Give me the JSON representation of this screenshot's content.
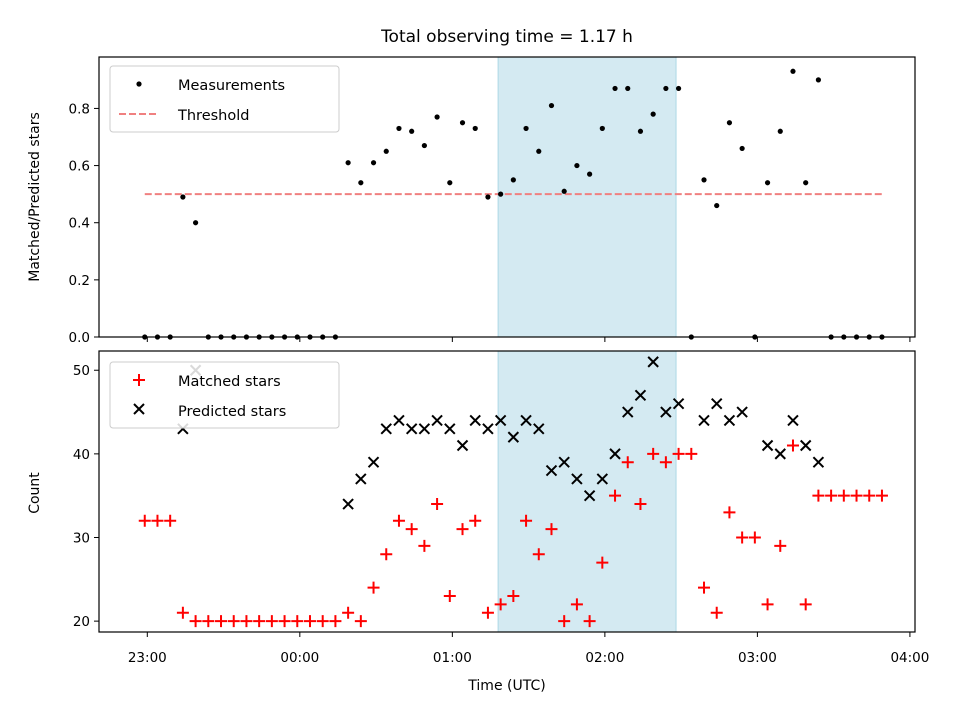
{
  "title": "Total observing time = 1.17 h",
  "xlabel": "Time (UTC)",
  "x_ticks": [
    "23:00",
    "00:00",
    "01:00",
    "02:00",
    "03:00",
    "04:00"
  ],
  "colors": {
    "measurements": "#000000",
    "threshold": "#f08080",
    "matched": "#ff0000",
    "predicted": "#000000",
    "span": "#add8e6"
  },
  "chart_data": [
    {
      "type": "scatter",
      "panel": "top",
      "ylabel": "Matched/Predicted stars",
      "ylim": [
        0,
        0.98
      ],
      "y_ticks": [
        "0.0",
        "0.2",
        "0.4",
        "0.6",
        "0.8"
      ],
      "xlim": [
        "22:41",
        "04:02"
      ],
      "shaded_interval": [
        "01:18",
        "02:28"
      ],
      "legend": {
        "position": "upper left",
        "entries": [
          "Measurements",
          "Threshold"
        ]
      },
      "threshold": {
        "name": "Threshold",
        "y": 0.5,
        "x_range": [
          "22:59",
          "03:49"
        ]
      },
      "series": [
        {
          "name": "Measurements",
          "marker": "dot",
          "x": [
            "22:59",
            "23:04",
            "23:09",
            "23:14",
            "23:19",
            "23:24",
            "23:29",
            "23:34",
            "23:39",
            "23:44",
            "23:49",
            "23:54",
            "23:59",
            "00:04",
            "00:09",
            "00:14",
            "00:19",
            "00:24",
            "00:29",
            "00:34",
            "00:39",
            "00:44",
            "00:49",
            "00:54",
            "00:59",
            "01:04",
            "01:09",
            "01:14",
            "01:19",
            "01:24",
            "01:29",
            "01:34",
            "01:39",
            "01:44",
            "01:49",
            "01:54",
            "01:59",
            "02:04",
            "02:09",
            "02:14",
            "02:19",
            "02:24",
            "02:29",
            "02:34",
            "02:39",
            "02:44",
            "02:49",
            "02:54",
            "02:59",
            "03:04",
            "03:09",
            "03:14",
            "03:19",
            "03:24",
            "03:29",
            "03:34",
            "03:39",
            "03:44",
            "03:49"
          ],
          "y": [
            0,
            0,
            0,
            0.49,
            0.4,
            0,
            0,
            0,
            0,
            0,
            0,
            0,
            0,
            0,
            0,
            0,
            0.61,
            0.54,
            0.61,
            0.65,
            0.73,
            0.72,
            0.67,
            0.77,
            0.54,
            0.75,
            0.73,
            0.49,
            0.5,
            0.55,
            0.73,
            0.65,
            0.81,
            0.51,
            0.6,
            0.57,
            0.73,
            0.87,
            0.87,
            0.72,
            0.78,
            0.87,
            0.87,
            0,
            0.55,
            0.46,
            0.75,
            0.66,
            0,
            0.54,
            0.72,
            0.93,
            0.54,
            0.9,
            0,
            0,
            0,
            0,
            0
          ]
        }
      ]
    },
    {
      "type": "scatter",
      "panel": "bottom",
      "ylabel": "Count",
      "ylim": [
        18.7,
        52.3
      ],
      "y_ticks": [
        "20",
        "30",
        "40",
        "50"
      ],
      "xlim": [
        "22:41",
        "04:02"
      ],
      "shaded_interval": [
        "01:18",
        "02:28"
      ],
      "legend": {
        "position": "upper left",
        "entries": [
          "Matched stars",
          "Predicted stars"
        ]
      },
      "series": [
        {
          "name": "Matched stars",
          "marker": "plus",
          "x": [
            "22:59",
            "23:04",
            "23:09",
            "23:14",
            "23:19",
            "23:24",
            "23:29",
            "23:34",
            "23:39",
            "23:44",
            "23:49",
            "23:54",
            "23:59",
            "00:04",
            "00:09",
            "00:14",
            "00:19",
            "00:24",
            "00:29",
            "00:34",
            "00:39",
            "00:44",
            "00:49",
            "00:54",
            "00:59",
            "01:04",
            "01:09",
            "01:14",
            "01:19",
            "01:24",
            "01:29",
            "01:34",
            "01:39",
            "01:44",
            "01:49",
            "01:54",
            "01:59",
            "02:04",
            "02:09",
            "02:14",
            "02:19",
            "02:24",
            "02:29",
            "02:34",
            "02:39",
            "02:44",
            "02:49",
            "02:54",
            "02:59",
            "03:04",
            "03:09",
            "03:14",
            "03:19",
            "03:24",
            "03:29",
            "03:34",
            "03:39",
            "03:44",
            "03:49"
          ],
          "y": [
            32,
            32,
            32,
            21,
            20,
            20,
            20,
            20,
            20,
            20,
            20,
            20,
            20,
            20,
            20,
            20,
            21,
            20,
            24,
            28,
            32,
            31,
            29,
            34,
            23,
            31,
            32,
            21,
            22,
            23,
            32,
            28,
            31,
            20,
            22,
            20,
            27,
            35,
            39,
            34,
            40,
            39,
            40,
            40,
            24,
            21,
            33,
            30,
            30,
            22,
            29,
            41,
            22,
            35,
            35,
            35,
            35,
            35,
            35
          ]
        },
        {
          "name": "Predicted stars",
          "marker": "x",
          "x": [
            "23:14",
            "23:19",
            "00:19",
            "00:24",
            "00:29",
            "00:34",
            "00:39",
            "00:44",
            "00:49",
            "00:54",
            "00:59",
            "01:04",
            "01:09",
            "01:14",
            "01:19",
            "01:24",
            "01:29",
            "01:34",
            "01:39",
            "01:44",
            "01:49",
            "01:54",
            "01:59",
            "02:04",
            "02:09",
            "02:14",
            "02:19",
            "02:24",
            "02:29",
            "02:39",
            "02:44",
            "02:49",
            "02:54",
            "03:04",
            "03:09",
            "03:14",
            "03:19",
            "03:24"
          ],
          "y": [
            43,
            50,
            34,
            37,
            39,
            43,
            44,
            43,
            43,
            44,
            43,
            41,
            44,
            43,
            44,
            42,
            44,
            43,
            38,
            39,
            37,
            35,
            37,
            40,
            45,
            47,
            51,
            45,
            46,
            44,
            46,
            44,
            45,
            41,
            40,
            44,
            41,
            39
          ]
        }
      ]
    }
  ]
}
